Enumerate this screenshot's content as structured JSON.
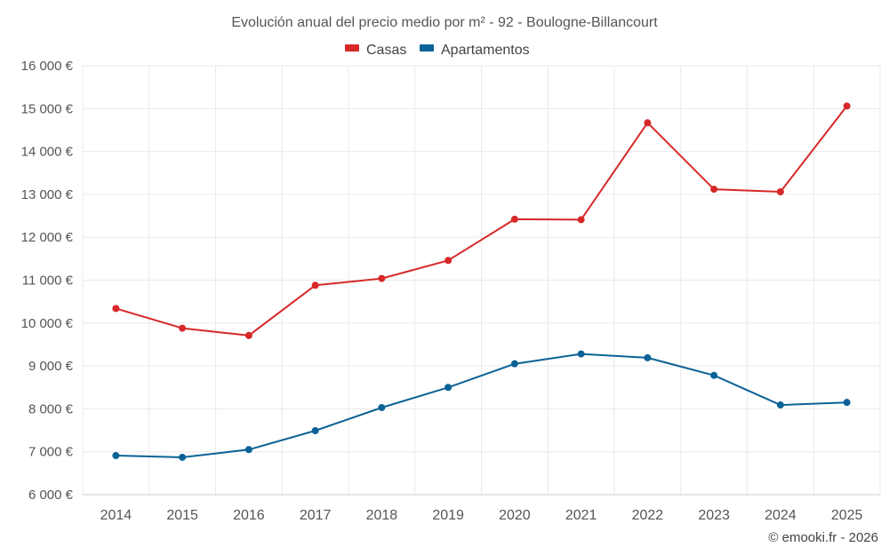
{
  "chart_data": {
    "type": "line",
    "title": "Evolución anual del precio medio por m² - 92 - Boulogne-Billancourt",
    "categories": [
      "2014",
      "2015",
      "2016",
      "2017",
      "2018",
      "2019",
      "2020",
      "2021",
      "2022",
      "2023",
      "2024",
      "2025"
    ],
    "series": [
      {
        "name": "Casas",
        "color": "#d62828",
        "values": [
          10340,
          9880,
          9710,
          10880,
          11040,
          11460,
          12420,
          12410,
          14670,
          13120,
          13060,
          15060
        ]
      },
      {
        "name": "Apartamentos",
        "color": "#0a6296",
        "values": [
          6910,
          6870,
          7050,
          7490,
          8030,
          8500,
          9050,
          9280,
          9190,
          8780,
          8090,
          8150
        ]
      }
    ],
    "ylim": [
      6000,
      16000
    ],
    "ytick_step": 1000,
    "ytick_labels": [
      "6 000 €",
      "7 000 €",
      "8 000 €",
      "9 000 €",
      "10 000 €",
      "11 000 €",
      "12 000 €",
      "13 000 €",
      "14 000 €",
      "15 000 €",
      "16 000 €"
    ],
    "grid": true,
    "legend_position": "top-center"
  },
  "credit": "© emooki.fr - 2026"
}
